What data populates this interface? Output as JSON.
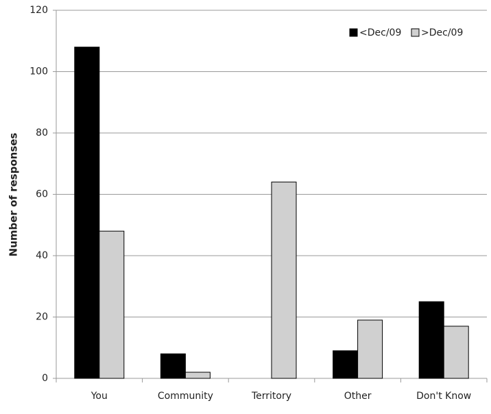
{
  "chart_data": {
    "type": "bar",
    "y_label": "Number of responses",
    "categories": [
      "You",
      "Community",
      "Territory",
      "Other",
      "Don't Know"
    ],
    "series": [
      {
        "name": "<Dec/09",
        "color": "#000000",
        "values": [
          108,
          8,
          0,
          9,
          25
        ]
      },
      {
        "name": ">Dec/09",
        "color": "#d0d0d0",
        "values": [
          48,
          2,
          64,
          19,
          17
        ]
      }
    ],
    "ylim": [
      0,
      120
    ],
    "yticks": [
      0,
      20,
      40,
      60,
      80,
      100,
      120
    ],
    "grid": true,
    "legend": "top-right"
  }
}
